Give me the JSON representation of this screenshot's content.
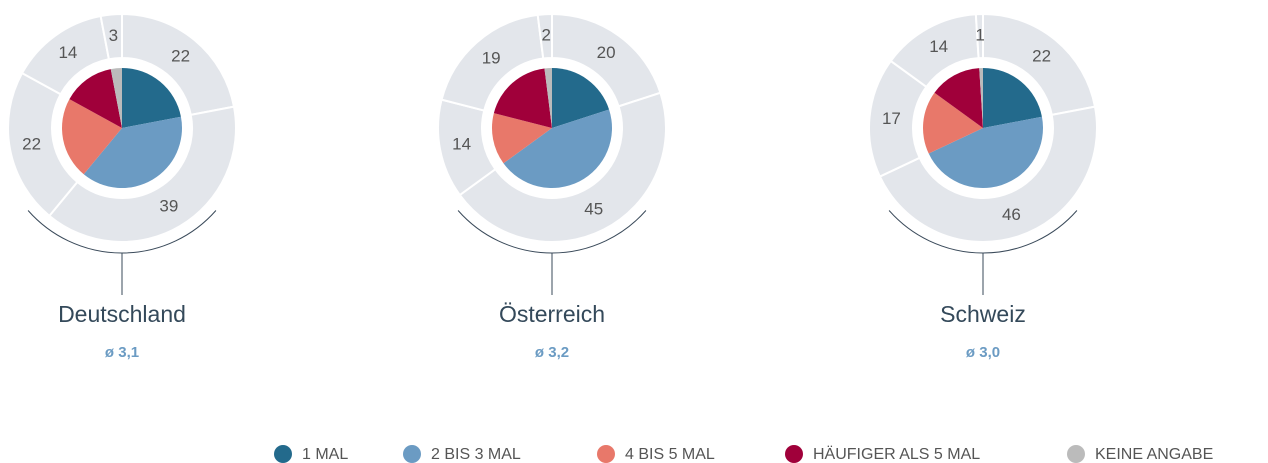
{
  "chart_data": [
    {
      "type": "pie",
      "title": "Deutschland",
      "subtitle": "ø 3,1",
      "values": [
        22,
        39,
        22,
        14,
        3
      ]
    },
    {
      "type": "pie",
      "title": "Österreich",
      "subtitle": "ø 3,2",
      "values": [
        20,
        45,
        14,
        19,
        2
      ]
    },
    {
      "type": "pie",
      "title": "Schweiz",
      "subtitle": "ø 3,0",
      "values": [
        22,
        46,
        17,
        14,
        1
      ]
    }
  ],
  "legend": {
    "labels": [
      "1 MAL",
      "2 BIS 3 MAL",
      "4 BIS 5 MAL",
      "HÄUFIGER ALS 5 MAL",
      "KEINE ANGABE"
    ],
    "colors": [
      "#236a8c",
      "#6b9bc3",
      "#e8786a",
      "#a0003a",
      "#bbbbbb"
    ]
  }
}
